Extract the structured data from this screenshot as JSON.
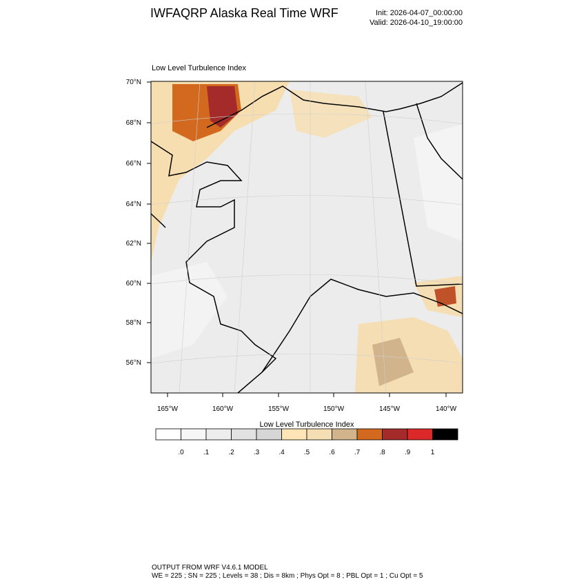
{
  "header": {
    "title": "IWFAQRP Alaska Real Time WRF",
    "init": "Init: 2026-04-07_00:00:00",
    "valid": "Valid: 2026-04-10_19:00:00"
  },
  "map": {
    "title": "Low Level Turbulence Index",
    "lat_labels": [
      "70°N",
      "68°N",
      "66°N",
      "64°N",
      "62°N",
      "60°N",
      "58°N",
      "56°N"
    ],
    "lon_labels": [
      "165°W",
      "160°W",
      "155°W",
      "150°W",
      "145°W",
      "140°W"
    ]
  },
  "colorbar": {
    "title": "Low Level Turbulence Index",
    "colors": [
      "#ffffff",
      "#f6f6f6",
      "#ededed",
      "#e2e2e2",
      "#d6d6d6",
      "#ffe4b5",
      "#f5deb3",
      "#d2b48c",
      "#d2691e",
      "#a52a2a",
      "#dc2828",
      "#000000"
    ],
    "labels": [
      ".0",
      ".1",
      ".2",
      ".3",
      ".4",
      ".5",
      ".6",
      ".7",
      ".8",
      ".9",
      "1"
    ]
  },
  "footer": {
    "line1": "OUTPUT FROM WRF V4.6.1 MODEL",
    "line2": "WE = 225 ; SN = 225 ; Levels = 38 ; Dis = 8km ; Phys Opt = 8 ; PBL Opt = 1 ; Cu Opt = 5"
  }
}
